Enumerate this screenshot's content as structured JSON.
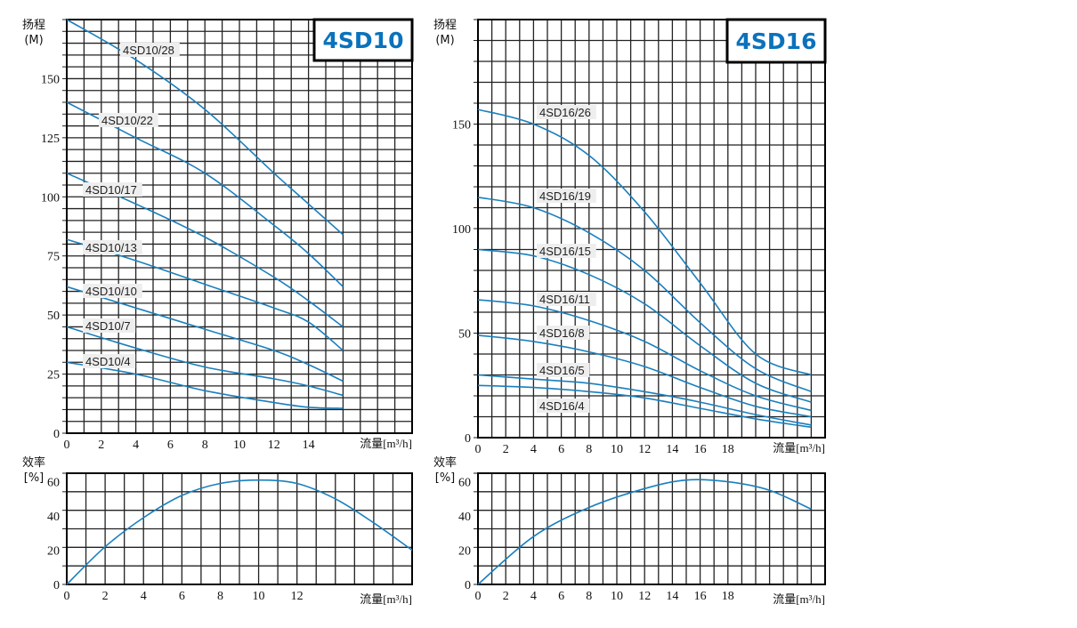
{
  "colors": {
    "curve": "#1a7fbe",
    "grid": "#222222",
    "frame": "#000000",
    "title": "#0b72bc",
    "label_bg": "#eeeeee"
  },
  "chart_data": [
    {
      "id": "4SD10-head",
      "type": "line",
      "title": "4SD10",
      "ylabel_lines": [
        "扬程",
        "(M)"
      ],
      "xlabel": "流量",
      "xunit": "[m³/h]",
      "xlim": [
        0,
        20
      ],
      "ylim": [
        0,
        175
      ],
      "xticks": [
        0,
        2,
        4,
        6,
        8,
        10,
        12,
        14
      ],
      "yticks": [
        0,
        25,
        50,
        75,
        100,
        125,
        150
      ],
      "series": [
        {
          "name": "4SD10/28",
          "x": [
            0,
            4,
            8,
            12,
            14,
            16
          ],
          "y": [
            175,
            158,
            137,
            110,
            97,
            84
          ]
        },
        {
          "name": "4SD10/22",
          "x": [
            0,
            4,
            8,
            12,
            14,
            16
          ],
          "y": [
            140,
            125,
            110,
            88,
            76,
            62
          ]
        },
        {
          "name": "4SD10/17",
          "x": [
            0,
            4,
            8,
            12,
            14,
            16
          ],
          "y": [
            110,
            97,
            83,
            66,
            56,
            45
          ]
        },
        {
          "name": "4SD10/13",
          "x": [
            0,
            4,
            8,
            12,
            14,
            16
          ],
          "y": [
            82,
            73,
            63,
            53,
            47,
            35
          ]
        },
        {
          "name": "4SD10/10",
          "x": [
            0,
            4,
            8,
            12,
            14,
            16
          ],
          "y": [
            62,
            53,
            44,
            35,
            29,
            22
          ]
        },
        {
          "name": "4SD10/7",
          "x": [
            0,
            4,
            8,
            12,
            14,
            16
          ],
          "y": [
            45,
            36,
            28,
            23,
            20,
            16
          ]
        },
        {
          "name": "4SD10/4",
          "x": [
            0,
            4,
            8,
            12,
            14,
            16
          ],
          "y": [
            30,
            25,
            18,
            13,
            11,
            10.5
          ]
        }
      ]
    },
    {
      "id": "4SD16-head",
      "type": "line",
      "title": "4SD16",
      "ylabel_lines": [
        "扬程",
        "(M)"
      ],
      "xlabel": "流量",
      "xunit": "[m³/h]",
      "xlim": [
        0,
        25
      ],
      "ylim": [
        0,
        200
      ],
      "xticks": [
        0,
        2,
        4,
        6,
        8,
        10,
        12,
        14,
        16,
        18
      ],
      "yticks": [
        0,
        50,
        100,
        150
      ],
      "series": [
        {
          "name": "4SD16/26",
          "x": [
            0,
            4,
            8,
            12,
            16,
            20,
            24
          ],
          "y": [
            157,
            150,
            135,
            108,
            74,
            40,
            30
          ]
        },
        {
          "name": "4SD16/19",
          "x": [
            0,
            4,
            8,
            12,
            16,
            20,
            24
          ],
          "y": [
            115,
            110,
            98,
            80,
            55,
            33,
            22
          ]
        },
        {
          "name": "4SD16/15",
          "x": [
            0,
            4,
            8,
            12,
            16,
            20,
            24
          ],
          "y": [
            90,
            87,
            78,
            64,
            44,
            26,
            17
          ]
        },
        {
          "name": "4SD16/11",
          "x": [
            0,
            4,
            8,
            12,
            16,
            20,
            24
          ],
          "y": [
            66,
            63,
            56,
            46,
            32,
            20,
            13
          ]
        },
        {
          "name": "4SD16/8",
          "x": [
            0,
            4,
            8,
            12,
            16,
            20,
            24
          ],
          "y": [
            49,
            46,
            41,
            34,
            24,
            15,
            10
          ]
        },
        {
          "name": "4SD16/5",
          "x": [
            0,
            4,
            8,
            12,
            16,
            20,
            24
          ],
          "y": [
            30,
            28,
            26,
            22,
            17,
            11,
            6
          ]
        },
        {
          "name": "4SD16/4",
          "x": [
            0,
            4,
            8,
            12,
            16,
            20,
            24
          ],
          "y": [
            25,
            24,
            22,
            19,
            14,
            9,
            5
          ]
        }
      ]
    },
    {
      "id": "4SD10-eff",
      "type": "line",
      "ylabel_lines": [
        "效率",
        "[%]"
      ],
      "xlabel": "流量",
      "xunit": "[m³/h]",
      "xlim": [
        0,
        18
      ],
      "ylim": [
        0,
        65
      ],
      "xticks": [
        0,
        2,
        4,
        6,
        8,
        10,
        12
      ],
      "yticks": [
        0,
        20,
        40,
        60
      ],
      "series": [
        {
          "x": [
            0,
            2,
            4,
            6,
            8,
            10,
            12,
            14,
            16,
            18
          ],
          "y": [
            0,
            22,
            39,
            52,
            59,
            61,
            59,
            50,
            36,
            20
          ]
        }
      ]
    },
    {
      "id": "4SD16-eff",
      "type": "line",
      "ylabel_lines": [
        "效率",
        "[%]"
      ],
      "xlabel": "流量",
      "xunit": "[m³/h]",
      "xlim": [
        0,
        25
      ],
      "ylim": [
        0,
        65
      ],
      "xticks": [
        0,
        2,
        4,
        6,
        8,
        10,
        12,
        14,
        16,
        18
      ],
      "yticks": [
        0,
        20,
        40,
        60
      ],
      "series": [
        {
          "x": [
            0,
            4,
            8,
            12,
            15,
            18,
            21,
            24
          ],
          "y": [
            0,
            28,
            45,
            56,
            61,
            60,
            55,
            44
          ]
        }
      ]
    }
  ]
}
